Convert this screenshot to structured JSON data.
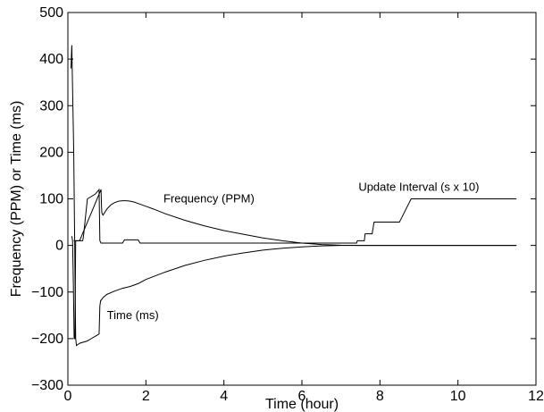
{
  "chart_data": {
    "type": "line",
    "title": "",
    "xlabel": "Time (hour)",
    "ylabel": "Frequency (PPM) or Time (ms)",
    "xlim": [
      0,
      12
    ],
    "ylim": [
      -300,
      500
    ],
    "xticks": [
      0,
      2,
      4,
      6,
      8,
      10,
      12
    ],
    "yticks": [
      -300,
      -200,
      -100,
      0,
      100,
      200,
      300,
      400,
      500
    ],
    "grid": false,
    "legend": "none",
    "line_color": "#000000",
    "annotations": [
      {
        "text": "Frequency (PPM)",
        "x": 2.45,
        "y": 100
      },
      {
        "text": "Update Interval (s x 10)",
        "x": 7.45,
        "y": 125
      },
      {
        "text": "Time (ms)",
        "x": 1.0,
        "y": -150
      }
    ],
    "series": [
      {
        "x": [
          0.1,
          0.12,
          0.14,
          0.16,
          0.18,
          0.2,
          0.3,
          0.4,
          0.5,
          0.6,
          0.7,
          0.8,
          0.85,
          0.86,
          0.87,
          0.9,
          1.0,
          1.1,
          1.2,
          1.3,
          1.4,
          1.5,
          1.6,
          1.7,
          1.8,
          2.0,
          2.2,
          2.5,
          3.0,
          3.5,
          4.0,
          4.5,
          5.0,
          5.5,
          6.0,
          6.5,
          7.0,
          7.5,
          8.0,
          9.0,
          10.0,
          11.5
        ],
        "y": [
          20,
          10,
          -80,
          -200,
          -200,
          10,
          10,
          30,
          50,
          70,
          90,
          110,
          120,
          90,
          70,
          65,
          78,
          87,
          92,
          95,
          96,
          96,
          95,
          93,
          90,
          84,
          78,
          68,
          54,
          42,
          32,
          24,
          16,
          10,
          5,
          2,
          0.5,
          0,
          0,
          0,
          0,
          0
        ]
      },
      {
        "x": [
          0.08,
          0.1,
          0.15,
          0.2,
          0.22,
          0.25,
          0.3,
          0.5,
          0.6,
          0.7,
          0.8,
          0.82,
          0.84,
          0.85,
          0.9,
          1.0,
          1.2,
          1.4,
          1.6,
          1.8,
          2.0,
          2.5,
          3.0,
          3.5,
          4.0,
          4.5,
          5.0,
          5.5,
          6.0,
          6.5,
          7.0,
          7.5,
          8.0,
          9.0,
          10.0,
          11.5
        ],
        "y": [
          380,
          430,
          200,
          -200,
          -215,
          -213,
          -210,
          -205,
          -200,
          -195,
          -190,
          -130,
          -118,
          -118,
          -112,
          -105,
          -98,
          -92,
          -88,
          -82,
          -73,
          -57,
          -43,
          -32,
          -23,
          -16,
          -10,
          -6,
          -3,
          -1,
          0,
          0,
          0,
          0,
          0,
          0
        ]
      },
      {
        "x": [
          0.15,
          0.3,
          0.38,
          0.4,
          0.5,
          0.7,
          0.8,
          0.82,
          0.85,
          0.9,
          1.0,
          1.4,
          1.45,
          1.8,
          1.85,
          3.0,
          5.0,
          7.4,
          7.42,
          7.5,
          7.6,
          7.62,
          7.8,
          7.85,
          8.1,
          8.12,
          8.5,
          8.8,
          11.5
        ],
        "y": [
          10,
          10,
          10,
          20,
          100,
          110,
          120,
          10,
          5,
          5,
          5,
          5,
          12,
          12,
          5,
          5,
          5,
          5,
          10,
          10,
          10,
          25,
          25,
          50,
          50,
          50,
          50,
          100,
          100
        ]
      }
    ]
  }
}
